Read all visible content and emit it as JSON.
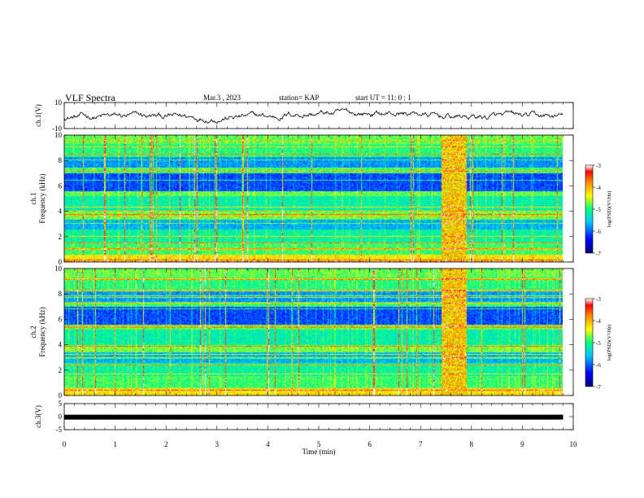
{
  "header": {
    "title": "VLF Spectra",
    "date": "Mar.3 , 2023",
    "station": "station= KAP",
    "start_ut": "start UT = 11: 0 : 1"
  },
  "chart_data": [
    {
      "type": "line",
      "name": "ch1-waveform",
      "ylabel": "ch.1(V)",
      "ylim": [
        -10,
        10
      ],
      "yticks": [
        "10",
        "-10"
      ],
      "xlim": [
        0,
        10
      ],
      "note_shape": "noisy trace fluctuating roughly between -6 and 4 V"
    },
    {
      "type": "heatmap",
      "name": "ch1-spectrogram",
      "ylabel": "ch.1\nFrequency (kHz)",
      "ylabel_lines": [
        "ch.1",
        "Frequency (kHz)"
      ],
      "ylim": [
        0,
        10
      ],
      "yticks": [
        "0",
        "2",
        "4",
        "6",
        "8",
        "10"
      ],
      "xlim": [
        0,
        10
      ],
      "data_extent_min": 9.8,
      "colorbar": {
        "label": "log(PSD)(V²/Hz)",
        "range": [
          -7,
          -3
        ],
        "ticks": [
          "-3",
          "-4",
          "-5",
          "-6",
          "-7"
        ],
        "colors": [
          "#000080",
          "#0000ff",
          "#00c8ff",
          "#00ff80",
          "#ffff00",
          "#ff8000",
          "#ff0000",
          "#ffffff"
        ]
      },
      "features": {
        "wideband_burst_min": [
          7.4,
          7.9
        ]
      }
    },
    {
      "type": "heatmap",
      "name": "ch2-spectrogram",
      "ylabel": "ch.2\nFrequency (kHz)",
      "ylabel_lines": [
        "ch.2",
        "Frequency (kHz)"
      ],
      "ylim": [
        0,
        10
      ],
      "yticks": [
        "0",
        "2",
        "4",
        "6",
        "8",
        "10"
      ],
      "xlim": [
        0,
        10
      ],
      "data_extent_min": 9.8,
      "colorbar": {
        "label": "log(PSD)(V²/Hz)",
        "range": [
          -7,
          -3
        ],
        "ticks": [
          "-3",
          "-4",
          "-5",
          "-6",
          "-7"
        ]
      },
      "features": {
        "wideband_burst_min": [
          7.4,
          7.9
        ]
      }
    },
    {
      "type": "line",
      "name": "ch3-waveform",
      "ylabel": "ch.3(V)",
      "ylim": [
        -5,
        5
      ],
      "yticks": [
        "5",
        "0",
        "-5"
      ],
      "xlim": [
        0,
        10
      ],
      "values_const": -0.2
    }
  ],
  "xaxis": {
    "label": "Time (min)",
    "ticks": [
      "0",
      "1",
      "2",
      "3",
      "4",
      "5",
      "6",
      "7",
      "8",
      "9",
      "10"
    ]
  }
}
